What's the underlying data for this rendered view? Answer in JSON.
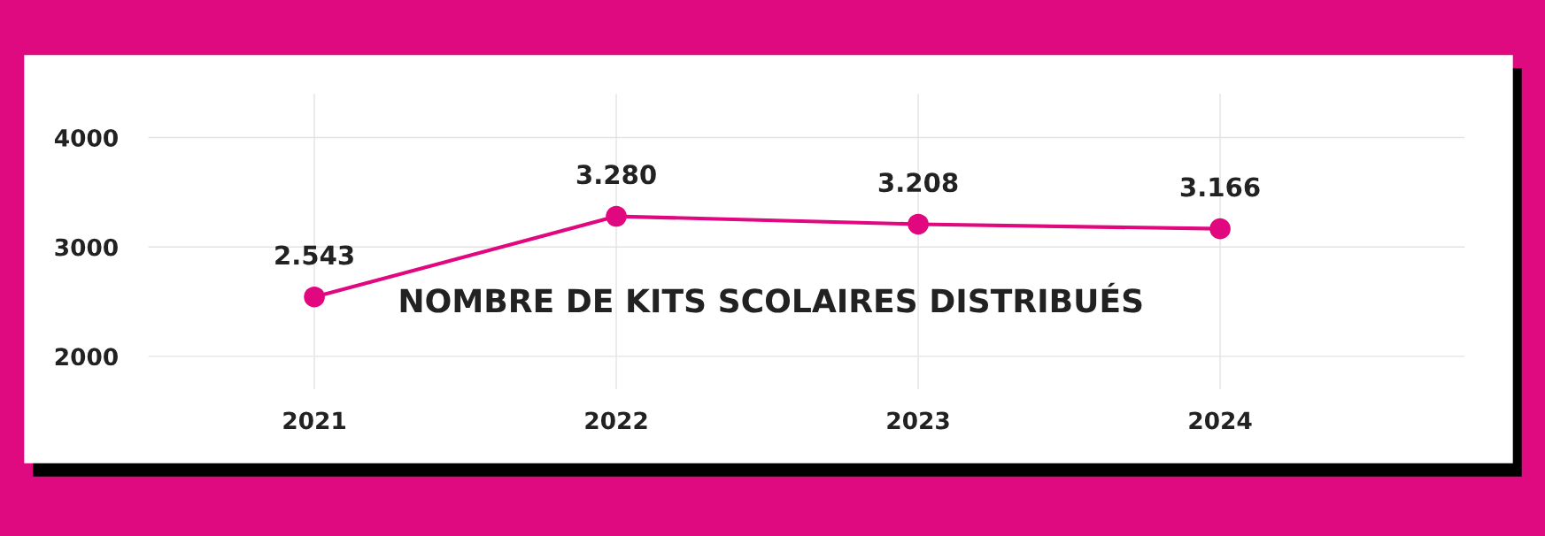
{
  "chart_data": {
    "type": "line",
    "title": "NOMBRE DE KITS SCOLAIRES DISTRIBUÉS",
    "categories": [
      "2021",
      "2022",
      "2023",
      "2024"
    ],
    "series": [
      {
        "color": "#e0077f",
        "values": [
          2543,
          3280,
          3208,
          3166
        ],
        "value_labels": [
          "2.543",
          "3.280",
          "3.208",
          "3.166"
        ]
      }
    ],
    "ylim": [
      1700,
      4400
    ],
    "yticks": [
      2000,
      3000,
      4000
    ],
    "grid": true,
    "marker": "circle",
    "line_style": "solid"
  }
}
